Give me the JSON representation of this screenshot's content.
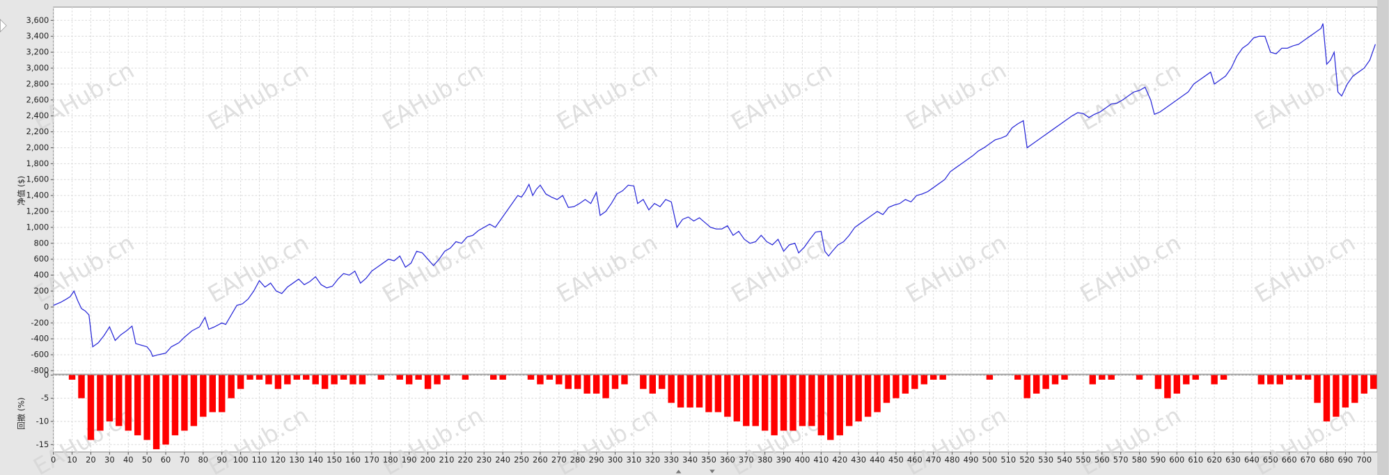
{
  "watermark": "EAHub.cn",
  "chart_data": [
    {
      "type": "line",
      "ylabel": "净值 ($)",
      "color": "#2a2ad8",
      "grid": true,
      "xlim": [
        0,
        707
      ],
      "ylim": [
        -844,
        3767
      ],
      "yticks": [
        -800,
        -600,
        -400,
        -200,
        0,
        200,
        400,
        600,
        800,
        {
          "value": 1000,
          "label": "1,000"
        },
        {
          "value": 1200,
          "label": "1,200"
        },
        {
          "value": 1400,
          "label": "1,400"
        },
        {
          "value": 1600,
          "label": "1,600"
        },
        {
          "value": 1800,
          "label": "1,800"
        },
        {
          "value": 2000,
          "label": "2,000"
        },
        {
          "value": 2200,
          "label": "2,200"
        },
        {
          "value": 2400,
          "label": "2,400"
        },
        {
          "value": 2600,
          "label": "2,600"
        },
        {
          "value": 2800,
          "label": "2,800"
        },
        {
          "value": 3000,
          "label": "3,000"
        },
        {
          "value": 3200,
          "label": "3,200"
        },
        {
          "value": 3400,
          "label": "3,400"
        },
        {
          "value": 3600,
          "label": "3,600"
        }
      ],
      "x": [
        0,
        4,
        7,
        9,
        11,
        13,
        15,
        17,
        19,
        21,
        24,
        27,
        30,
        33,
        36,
        39,
        42,
        44,
        47,
        50,
        52,
        53,
        56,
        60,
        63,
        67,
        70,
        74,
        78,
        81,
        83,
        86,
        90,
        92,
        95,
        98,
        101,
        104,
        107,
        110,
        113,
        116,
        119,
        122,
        125,
        128,
        131,
        134,
        137,
        140,
        143,
        146,
        149,
        152,
        155,
        158,
        161,
        164,
        167,
        170,
        173,
        176,
        179,
        182,
        185,
        188,
        191,
        194,
        197,
        200,
        203,
        206,
        209,
        212,
        215,
        218,
        221,
        224,
        227,
        230,
        233,
        236,
        239,
        242,
        245,
        248,
        250,
        252,
        254,
        256,
        258,
        260,
        263,
        266,
        269,
        272,
        275,
        278,
        281,
        284,
        287,
        290,
        292,
        295,
        298,
        301,
        304,
        307,
        310,
        312,
        315,
        318,
        321,
        324,
        327,
        330,
        333,
        336,
        339,
        342,
        345,
        348,
        351,
        354,
        357,
        360,
        363,
        366,
        369,
        372,
        375,
        378,
        381,
        384,
        387,
        390,
        393,
        396,
        398,
        401,
        404,
        407,
        410,
        412,
        414,
        416,
        419,
        422,
        425,
        428,
        431,
        434,
        437,
        440,
        443,
        446,
        449,
        452,
        455,
        458,
        461,
        464,
        467,
        470,
        473,
        476,
        479,
        482,
        485,
        488,
        491,
        494,
        497,
        500,
        503,
        506,
        509,
        512,
        515,
        518,
        520,
        523,
        526,
        529,
        532,
        535,
        538,
        541,
        544,
        547,
        550,
        553,
        556,
        559,
        562,
        565,
        568,
        571,
        574,
        577,
        580,
        583,
        586,
        588,
        591,
        594,
        597,
        600,
        603,
        606,
        609,
        612,
        615,
        618,
        620,
        623,
        626,
        629,
        632,
        635,
        638,
        641,
        644,
        647,
        650,
        653,
        656,
        659,
        662,
        665,
        668,
        671,
        674,
        677,
        678,
        680,
        682,
        684,
        686,
        688,
        691,
        694,
        697,
        700,
        703,
        706
      ],
      "values": [
        20,
        60,
        100,
        130,
        200,
        80,
        -20,
        -50,
        -100,
        -500,
        -450,
        -360,
        -250,
        -420,
        -350,
        -300,
        -240,
        -460,
        -480,
        -500,
        -560,
        -620,
        -600,
        -580,
        -500,
        -450,
        -380,
        -300,
        -250,
        -130,
        -280,
        -250,
        -200,
        -220,
        -100,
        20,
        40,
        100,
        200,
        330,
        250,
        300,
        200,
        170,
        250,
        300,
        350,
        280,
        320,
        380,
        280,
        240,
        260,
        350,
        420,
        400,
        450,
        300,
        360,
        450,
        500,
        550,
        600,
        580,
        640,
        500,
        550,
        700,
        680,
        600,
        520,
        600,
        700,
        740,
        820,
        800,
        880,
        900,
        960,
        1000,
        1040,
        1000,
        1100,
        1200,
        1300,
        1400,
        1380,
        1450,
        1540,
        1400,
        1480,
        1530,
        1420,
        1380,
        1350,
        1400,
        1250,
        1260,
        1300,
        1350,
        1300,
        1440,
        1150,
        1200,
        1300,
        1420,
        1460,
        1530,
        1520,
        1300,
        1350,
        1220,
        1300,
        1260,
        1350,
        1320,
        1000,
        1100,
        1130,
        1080,
        1120,
        1060,
        1000,
        980,
        980,
        1020,
        900,
        950,
        850,
        800,
        820,
        900,
        820,
        780,
        850,
        700,
        780,
        800,
        680,
        750,
        850,
        940,
        950,
        700,
        640,
        700,
        780,
        820,
        900,
        1000,
        1050,
        1100,
        1150,
        1200,
        1160,
        1250,
        1280,
        1300,
        1350,
        1320,
        1400,
        1420,
        1450,
        1500,
        1550,
        1600,
        1700,
        1750,
        1800,
        1850,
        1900,
        1960,
        2000,
        2050,
        2100,
        2120,
        2150,
        2250,
        2300,
        2340,
        2000,
        2050,
        2100,
        2150,
        2200,
        2250,
        2300,
        2350,
        2400,
        2440,
        2430,
        2380,
        2420,
        2450,
        2500,
        2550,
        2560,
        2600,
        2650,
        2700,
        2720,
        2760,
        2600,
        2420,
        2450,
        2500,
        2550,
        2600,
        2650,
        2700,
        2800,
        2850,
        2900,
        2950,
        2800,
        2850,
        2900,
        3000,
        3150,
        3250,
        3300,
        3380,
        3400,
        3400,
        3200,
        3180,
        3250,
        3250,
        3280,
        3300,
        3350,
        3400,
        3450,
        3500,
        3560,
        3050,
        3100,
        3200,
        2700,
        2650,
        2800,
        2900,
        2950,
        3000,
        3100,
        3300
      ]
    },
    {
      "type": "bar",
      "ylabel": "回撤 (%)",
      "color": "#ff0000",
      "grid": true,
      "xlim": [
        0,
        707
      ],
      "ylim": [
        -16.6,
        0
      ],
      "yticks": [
        -15,
        -10,
        -5,
        0
      ],
      "xticks": [
        0,
        10,
        20,
        30,
        40,
        50,
        60,
        70,
        80,
        90,
        100,
        110,
        120,
        130,
        140,
        150,
        160,
        170,
        180,
        190,
        200,
        210,
        220,
        230,
        240,
        250,
        260,
        270,
        280,
        290,
        300,
        310,
        320,
        330,
        340,
        350,
        360,
        370,
        380,
        390,
        400,
        410,
        420,
        430,
        440,
        450,
        460,
        470,
        480,
        490,
        500,
        510,
        520,
        530,
        540,
        550,
        560,
        570,
        580,
        590,
        600,
        610,
        620,
        630,
        640,
        650,
        660,
        670,
        680,
        690,
        700
      ],
      "x": [
        0,
        5,
        10,
        15,
        20,
        25,
        30,
        35,
        40,
        45,
        50,
        55,
        60,
        65,
        70,
        75,
        80,
        85,
        90,
        95,
        100,
        105,
        110,
        115,
        120,
        125,
        130,
        135,
        140,
        145,
        150,
        155,
        160,
        165,
        170,
        175,
        180,
        185,
        190,
        195,
        200,
        205,
        210,
        215,
        220,
        225,
        230,
        235,
        240,
        245,
        250,
        255,
        260,
        265,
        270,
        275,
        280,
        285,
        290,
        295,
        300,
        305,
        310,
        315,
        320,
        325,
        330,
        335,
        340,
        345,
        350,
        355,
        360,
        365,
        370,
        375,
        380,
        385,
        390,
        395,
        400,
        405,
        410,
        415,
        420,
        425,
        430,
        435,
        440,
        445,
        450,
        455,
        460,
        465,
        470,
        475,
        480,
        485,
        490,
        495,
        500,
        505,
        510,
        515,
        520,
        525,
        530,
        535,
        540,
        545,
        550,
        555,
        560,
        565,
        570,
        575,
        580,
        585,
        590,
        595,
        600,
        605,
        610,
        615,
        620,
        625,
        630,
        635,
        640,
        645,
        650,
        655,
        660,
        665,
        670,
        675,
        680,
        685,
        690,
        695,
        700,
        705
      ],
      "values": [
        0,
        0,
        -1,
        -5,
        -14,
        -12,
        -10,
        -11,
        -12,
        -13,
        -14,
        -16,
        -15,
        -13,
        -12,
        -11,
        -9,
        -8,
        -8,
        -5,
        -3,
        -1,
        -1,
        -2,
        -3,
        -2,
        -1,
        -1,
        -2,
        -3,
        -2,
        -1,
        -2,
        -2,
        0,
        -1,
        0,
        -1,
        -2,
        -1,
        -3,
        -2,
        -1,
        0,
        -1,
        0,
        0,
        -1,
        -1,
        0,
        0,
        -1,
        -2,
        -1,
        -2,
        -3,
        -3,
        -4,
        -4,
        -5,
        -3,
        -2,
        0,
        -3,
        -4,
        -3,
        -6,
        -7,
        -7,
        -7,
        -8,
        -8,
        -9,
        -10,
        -11,
        -11,
        -12,
        -13,
        -12,
        -12,
        -11,
        -11,
        -13,
        -14,
        -13,
        -11,
        -10,
        -9,
        -8,
        -6,
        -5,
        -4,
        -3,
        -2,
        -1,
        -1,
        0,
        0,
        0,
        0,
        -1,
        0,
        0,
        -1,
        -5,
        -4,
        -3,
        -2,
        -1,
        0,
        0,
        -2,
        -1,
        -1,
        0,
        0,
        -1,
        0,
        -3,
        -5,
        -4,
        -2,
        -1,
        0,
        -2,
        -1,
        0,
        0,
        0,
        -2,
        -2,
        -2,
        -1,
        -1,
        -1,
        -6,
        -10,
        -9,
        -7,
        -6,
        -4,
        -3
      ]
    }
  ]
}
